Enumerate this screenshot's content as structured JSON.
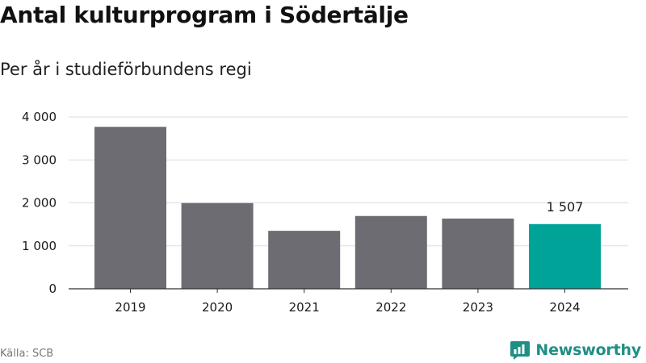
{
  "chart_data": {
    "type": "bar",
    "title": "Antal kulturprogram i Södertälje",
    "subtitle": "Per år i studieförbundens regi",
    "xlabel": "",
    "ylabel": "",
    "categories": [
      "2019",
      "2020",
      "2021",
      "2022",
      "2023",
      "2024"
    ],
    "values": [
      3770,
      1995,
      1350,
      1695,
      1635,
      1507
    ],
    "ylim": [
      0,
      4000
    ],
    "yticks": [
      0,
      1000,
      2000,
      3000,
      4000
    ],
    "ytick_labels": [
      "0",
      "1 000",
      "2 000",
      "3 000",
      "4 000"
    ],
    "data_labels": [
      {
        "category": "2024",
        "text": "1 507"
      }
    ],
    "highlight_category": "2024",
    "grid": true,
    "legend": "none",
    "colors": {
      "bar": "#6d6c72",
      "highlight": "#00a398",
      "grid": "#dddddd",
      "axis": "#333333",
      "text": "#1a1a1a"
    }
  },
  "footer": {
    "source": "Källa: SCB",
    "brand": "Newsworthy",
    "brand_icon": "bar-chart-speech-bubble-icon",
    "brand_color": "#1f8f86"
  }
}
